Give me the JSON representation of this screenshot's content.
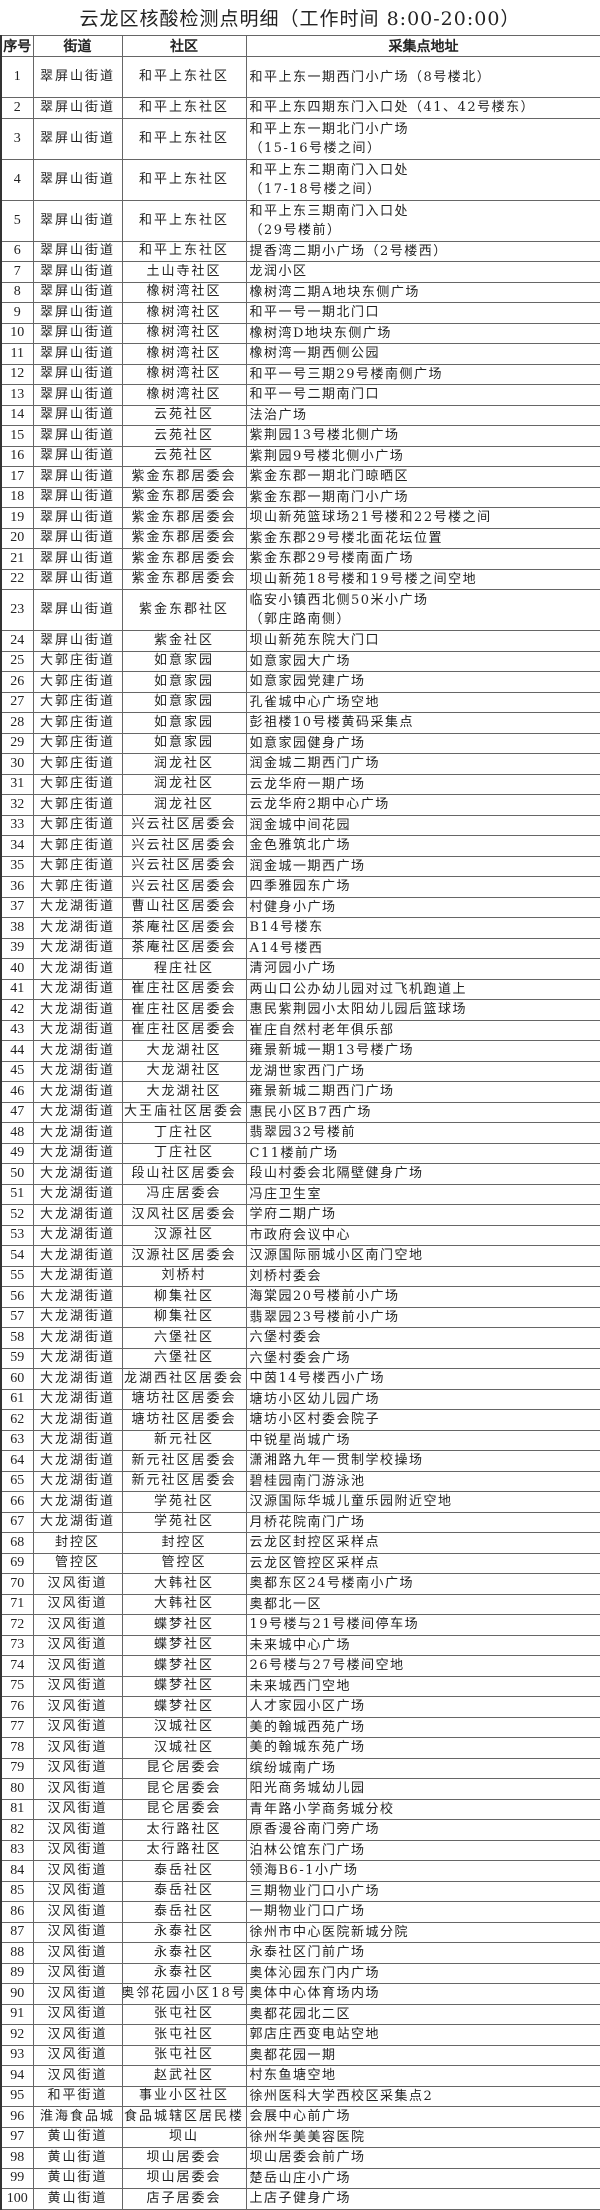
{
  "title": "云龙区核酸检测点明细（工作时间 8:00-20:00）",
  "headers": [
    "序号",
    "街道",
    "社区",
    "采集点地址"
  ],
  "rows": [
    [
      "1",
      "翠屏山街道",
      "和平上东社区",
      "和平上东一期西门小广场（8号楼北）"
    ],
    [
      "2",
      "翠屏山街道",
      "和平上东社区",
      "和平上东四期东门入口处（41、42号楼东）"
    ],
    [
      "3",
      "翠屏山街道",
      "和平上东社区",
      "和平上东一期北门小广场\n（15-16号楼之间）"
    ],
    [
      "4",
      "翠屏山街道",
      "和平上东社区",
      "和平上东二期南门入口处\n（17-18号楼之间）"
    ],
    [
      "5",
      "翠屏山街道",
      "和平上东社区",
      "和平上东三期南门入口处\n（29号楼前）"
    ],
    [
      "6",
      "翠屏山街道",
      "和平上东社区",
      "提香湾二期小广场（2号楼西）"
    ],
    [
      "7",
      "翠屏山街道",
      "土山寺社区",
      "龙润小区"
    ],
    [
      "8",
      "翠屏山街道",
      "橡树湾社区",
      "橡树湾二期A地块东侧广场"
    ],
    [
      "9",
      "翠屏山街道",
      "橡树湾社区",
      "和平一号一期北门口"
    ],
    [
      "10",
      "翠屏山街道",
      "橡树湾社区",
      "橡树湾D地块东侧广场"
    ],
    [
      "11",
      "翠屏山街道",
      "橡树湾社区",
      "橡树湾一期西侧公园"
    ],
    [
      "12",
      "翠屏山街道",
      "橡树湾社区",
      "和平一号三期29号楼南侧广场"
    ],
    [
      "13",
      "翠屏山街道",
      "橡树湾社区",
      "和平一号二期南门口"
    ],
    [
      "14",
      "翠屏山街道",
      "云苑社区",
      "法治广场"
    ],
    [
      "15",
      "翠屏山街道",
      "云苑社区",
      "紫荆园13号楼北侧广场"
    ],
    [
      "16",
      "翠屏山街道",
      "云苑社区",
      "紫荆园9号楼北侧小广场"
    ],
    [
      "17",
      "翠屏山街道",
      "紫金东郡居委会",
      "紫金东郡一期北门晾晒区"
    ],
    [
      "18",
      "翠屏山街道",
      "紫金东郡居委会",
      "紫金东郡一期南门小广场"
    ],
    [
      "19",
      "翠屏山街道",
      "紫金东郡居委会",
      "坝山新苑篮球场21号楼和22号楼之间"
    ],
    [
      "20",
      "翠屏山街道",
      "紫金东郡居委会",
      "紫金东郡29号楼北面花坛位置"
    ],
    [
      "21",
      "翠屏山街道",
      "紫金东郡居委会",
      "紫金东郡29号楼南面广场"
    ],
    [
      "22",
      "翠屏山街道",
      "紫金东郡居委会",
      "坝山新苑18号楼和19号楼之间空地"
    ],
    [
      "23",
      "翠屏山街道",
      "紫金东郡社区",
      "临安小镇西北侧50米小广场\n（郭庄路南侧）"
    ],
    [
      "24",
      "翠屏山街道",
      "紫金社区",
      "坝山新苑东院大门口"
    ],
    [
      "25",
      "大郭庄街道",
      "如意家园",
      "如意家园大广场"
    ],
    [
      "26",
      "大郭庄街道",
      "如意家园",
      "如意家园党建广场"
    ],
    [
      "27",
      "大郭庄街道",
      "如意家园",
      "孔雀城中心广场空地"
    ],
    [
      "28",
      "大郭庄街道",
      "如意家园",
      "彭祖楼10号楼黄码采集点"
    ],
    [
      "29",
      "大郭庄街道",
      "如意家园",
      "如意家园健身广场"
    ],
    [
      "30",
      "大郭庄街道",
      "润龙社区",
      "润金城二期西门广场"
    ],
    [
      "31",
      "大郭庄街道",
      "润龙社区",
      "云龙华府一期广场"
    ],
    [
      "32",
      "大郭庄街道",
      "润龙社区",
      "云龙华府2期中心广场"
    ],
    [
      "33",
      "大郭庄街道",
      "兴云社区居委会",
      "润金城中间花园"
    ],
    [
      "34",
      "大郭庄街道",
      "兴云社区居委会",
      "金色雅筑北广场"
    ],
    [
      "35",
      "大郭庄街道",
      "兴云社区居委会",
      "润金城一期西广场"
    ],
    [
      "36",
      "大郭庄街道",
      "兴云社区居委会",
      "四季雅园东广场"
    ],
    [
      "37",
      "大龙湖街道",
      "曹山社区居委会",
      "村健身小广场"
    ],
    [
      "38",
      "大龙湖街道",
      "茶庵社区居委会",
      "B14号楼东"
    ],
    [
      "39",
      "大龙湖街道",
      "茶庵社区居委会",
      "A14号楼西"
    ],
    [
      "40",
      "大龙湖街道",
      "程庄社区",
      "清河园小广场"
    ],
    [
      "41",
      "大龙湖街道",
      "崔庄社区居委会",
      "两山口公办幼儿园对过飞机跑道上"
    ],
    [
      "42",
      "大龙湖街道",
      "崔庄社区居委会",
      "惠民紫荆园小太阳幼儿园后篮球场"
    ],
    [
      "43",
      "大龙湖街道",
      "崔庄社区居委会",
      "崔庄自然村老年俱乐部"
    ],
    [
      "44",
      "大龙湖街道",
      "大龙湖社区",
      "雍景新城一期13号楼广场"
    ],
    [
      "45",
      "大龙湖街道",
      "大龙湖社区",
      "龙湖世家西门广场"
    ],
    [
      "46",
      "大龙湖街道",
      "大龙湖社区",
      "雍景新城二期西门广场"
    ],
    [
      "47",
      "大龙湖街道",
      "大王庙社区居委会",
      "惠民小区B7西广场"
    ],
    [
      "48",
      "大龙湖街道",
      "丁庄社区",
      "翡翠园32号楼前"
    ],
    [
      "49",
      "大龙湖街道",
      "丁庄社区",
      "C11楼前广场"
    ],
    [
      "50",
      "大龙湖街道",
      "段山社区居委会",
      "段山村委会北隔壁健身广场"
    ],
    [
      "51",
      "大龙湖街道",
      "冯庄居委会",
      "冯庄卫生室"
    ],
    [
      "52",
      "大龙湖街道",
      "汉风社区居委会",
      "学府二期广场"
    ],
    [
      "53",
      "大龙湖街道",
      "汉源社区",
      "市政府会议中心"
    ],
    [
      "54",
      "大龙湖街道",
      "汉源社区居委会",
      "汉源国际丽城小区南门空地"
    ],
    [
      "55",
      "大龙湖街道",
      "刘桥村",
      "刘桥村委会"
    ],
    [
      "56",
      "大龙湖街道",
      "柳集社区",
      "海棠园20号楼前小广场"
    ],
    [
      "57",
      "大龙湖街道",
      "柳集社区",
      "翡翠园23号楼前小广场"
    ],
    [
      "58",
      "大龙湖街道",
      "六堡社区",
      "六堡村委会"
    ],
    [
      "59",
      "大龙湖街道",
      "六堡社区",
      "六堡村委会广场"
    ],
    [
      "60",
      "大龙湖街道",
      "龙湖西社区居委会",
      "中茵14号楼西小广场"
    ],
    [
      "61",
      "大龙湖街道",
      "塘坊社区居委会",
      "塘坊小区幼儿园广场"
    ],
    [
      "62",
      "大龙湖街道",
      "塘坊社区居委会",
      "塘坊小区村委会院子"
    ],
    [
      "63",
      "大龙湖街道",
      "新元社区",
      "中锐星尚城广场"
    ],
    [
      "64",
      "大龙湖街道",
      "新元社区居委会",
      "潇湘路九年一贯制学校操场"
    ],
    [
      "65",
      "大龙湖街道",
      "新元社区居委会",
      "碧桂园南门游泳池"
    ],
    [
      "66",
      "大龙湖街道",
      "学苑社区",
      "汉源国际华城儿童乐园附近空地"
    ],
    [
      "67",
      "大龙湖街道",
      "学苑社区",
      "月桥花院南门广场"
    ],
    [
      "68",
      "封控区",
      "封控区",
      "云龙区封控区采样点"
    ],
    [
      "69",
      "管控区",
      "管控区",
      "云龙区管控区采样点"
    ],
    [
      "70",
      "汉风街道",
      "大韩社区",
      "奥都东区24号楼南小广场"
    ],
    [
      "71",
      "汉风街道",
      "大韩社区",
      "奥都北一区"
    ],
    [
      "72",
      "汉风街道",
      "蝶梦社区",
      "19号楼与21号楼间停车场"
    ],
    [
      "73",
      "汉风街道",
      "蝶梦社区",
      "未来城中心广场"
    ],
    [
      "74",
      "汉风街道",
      "蝶梦社区",
      "26号楼与27号楼间空地"
    ],
    [
      "75",
      "汉风街道",
      "蝶梦社区",
      "未来城西门空地"
    ],
    [
      "76",
      "汉风街道",
      "蝶梦社区",
      "人才家园小区广场"
    ],
    [
      "77",
      "汉风街道",
      "汉城社区",
      "美的翰城西苑广场"
    ],
    [
      "78",
      "汉风街道",
      "汉城社区",
      "美的翰城东苑广场"
    ],
    [
      "79",
      "汉风街道",
      "昆仑居委会",
      "缤纷城南广场"
    ],
    [
      "80",
      "汉风街道",
      "昆仑居委会",
      "阳光商务城幼儿园"
    ],
    [
      "81",
      "汉风街道",
      "昆仑居委会",
      "青年路小学商务城分校"
    ],
    [
      "82",
      "汉风街道",
      "太行路社区",
      "原香漫谷南门旁广场"
    ],
    [
      "83",
      "汉风街道",
      "太行路社区",
      "泊林公馆东门广场"
    ],
    [
      "84",
      "汉风街道",
      "泰岳社区",
      "领海B6-1小广场"
    ],
    [
      "85",
      "汉风街道",
      "泰岳社区",
      "三期物业门口小广场"
    ],
    [
      "86",
      "汉风街道",
      "泰岳社区",
      "一期物业门口广场"
    ],
    [
      "87",
      "汉风街道",
      "永泰社区",
      "徐州市中心医院新城分院"
    ],
    [
      "88",
      "汉风街道",
      "永泰社区",
      "永泰社区门前广场"
    ],
    [
      "89",
      "汉风街道",
      "永泰社区",
      "奥体沁园东门内广场"
    ],
    [
      "90",
      "汉风街道",
      "区奥邻花园小区18号楼",
      "奥体中心体育场内场"
    ],
    [
      "91",
      "汉风街道",
      "张屯社区",
      "奥都花园北二区"
    ],
    [
      "92",
      "汉风街道",
      "张屯社区",
      "郭店庄西变电站空地"
    ],
    [
      "93",
      "汉风街道",
      "张屯社区",
      "奥都花园一期"
    ],
    [
      "94",
      "汉风街道",
      "赵武社区",
      "村东鱼塘空地"
    ],
    [
      "95",
      "和平街道",
      "事业小区社区",
      "徐州医科大学西校区采集点2"
    ],
    [
      "96",
      "淮海食品城",
      "食品城辖区居民楼",
      "会展中心前广场"
    ],
    [
      "97",
      "黄山街道",
      "坝山",
      "徐州华美美容医院"
    ],
    [
      "98",
      "黄山街道",
      "坝山居委会",
      "坝山居委会前广场"
    ],
    [
      "99",
      "黄山街道",
      "坝山居委会",
      "楚岳山庄小广场"
    ],
    [
      "100",
      "黄山街道",
      "店子居委会",
      "上店子健身广场"
    ]
  ]
}
